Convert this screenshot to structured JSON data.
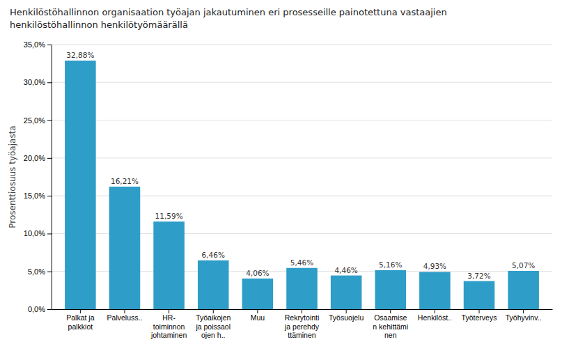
{
  "chart_data": {
    "type": "bar",
    "title": "Henkilöstöhallinnon organisaation työajan jakautuminen eri prosesseille painotettuna vastaajien\nhenkilöstöhallinnon henkilötyömäärällä",
    "y_label": "Prosenttiosuus työajasta",
    "categories": [
      "Palkat ja\npalkkiot",
      "Palveluss..",
      "HR-\ntoiminnon\njohtaminen",
      "Työaikojen\nja poissaol\nojen h..",
      "Muu",
      "Rekrytointi\nja perehdy\nttäminen",
      "Työsuojelu",
      "Osaamise\nn kehittämi\nnen",
      "Henkilöst..",
      "Työterveys",
      "Työhyvinv.."
    ],
    "values": [
      32.88,
      16.21,
      11.59,
      6.46,
      4.06,
      5.46,
      4.46,
      5.16,
      4.93,
      3.72,
      5.07
    ],
    "value_labels": [
      "32,88%",
      "16,21%",
      "11,59%",
      "6,46%",
      "4,06%",
      "5,46%",
      "4,46%",
      "5,16%",
      "4,93%",
      "3,72%",
      "5,07%"
    ],
    "data_labels": true,
    "color": "#2E9DC8",
    "ylim": [
      0,
      35
    ],
    "yticks": [
      {
        "value": 0,
        "label": "0,0%"
      },
      {
        "value": 5,
        "label": "5,0%"
      },
      {
        "value": 10,
        "label": "10,0%"
      },
      {
        "value": 15,
        "label": "15,0%"
      },
      {
        "value": 20,
        "label": "20,0%"
      },
      {
        "value": 25,
        "label": "25,0%"
      },
      {
        "value": 30,
        "label": "30,0%"
      },
      {
        "value": 35,
        "label": "35,0%"
      }
    ],
    "grid": true
  }
}
